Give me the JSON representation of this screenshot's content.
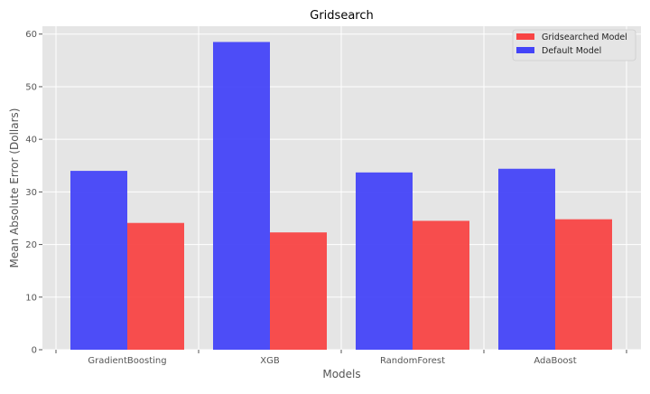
{
  "chart_data": {
    "type": "bar",
    "title": "Gridsearch",
    "xlabel": "Models",
    "ylabel": "Mean Absolute Error (Dollars)",
    "categories": [
      "GradientBoosting",
      "XGB",
      "RandomForest",
      "AdaBoost"
    ],
    "ylim": [
      0,
      61.5
    ],
    "yticks": [
      0,
      10,
      20,
      30,
      40,
      50,
      60
    ],
    "grid": true,
    "legend_position": "top-right",
    "series": [
      {
        "name": "Gridsearched Model",
        "color": "#f84444",
        "values": [
          24.1,
          22.3,
          24.5,
          24.8
        ]
      },
      {
        "name": "Default Model",
        "color": "#4444f8",
        "values": [
          34.0,
          58.5,
          33.7,
          34.4
        ]
      }
    ]
  },
  "style": {
    "plot_background": "#e5e5e5",
    "grid_color": "#ffffff",
    "text_color": "#555555",
    "title_color": "#000000"
  }
}
